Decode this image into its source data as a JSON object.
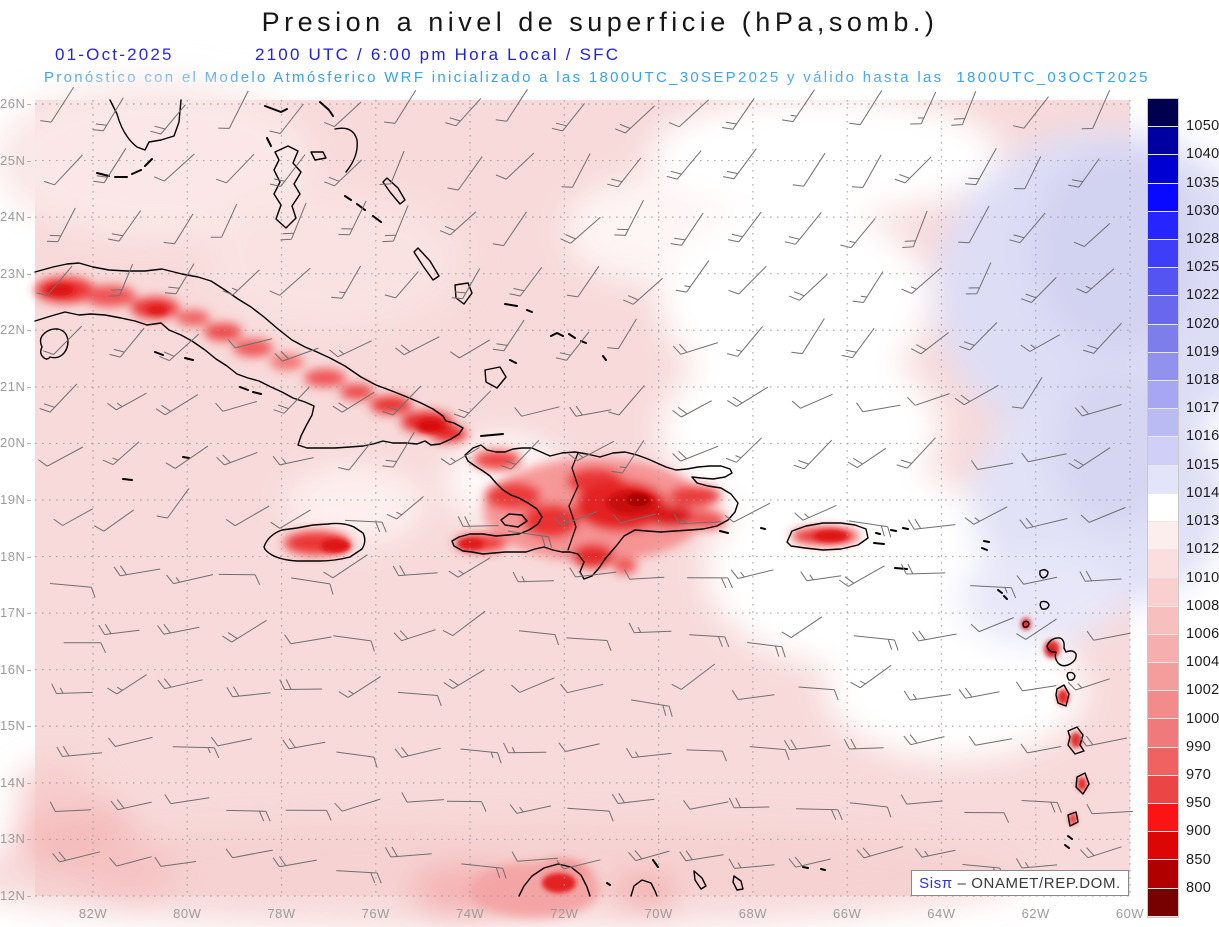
{
  "header": {
    "title": "Presion a nivel de superficie (hPa,somb.)",
    "date": "01-Oct-2025",
    "time_line": "2100 UTC / 6:00 pm Hora Local / SFC",
    "forecast_line": "Pronóstico con el Modelo Atmósferico WRF inicializado a las 1800UTC_30SEP2025 y válido hasta las  1800UTC_03OCT2025"
  },
  "colors": {
    "title_text": "#161616",
    "date_line_text": "#2222dd",
    "forecast_line_text": "#35a2f2",
    "axis_labels": "#9c9c9c",
    "coastline": "#000000",
    "wind_barbs": "#6f6f6f",
    "attribution_brand": "#2f2fe0",
    "attribution_text": "#3a3a3a",
    "sea_base_pink": "#f8dada"
  },
  "axes": {
    "lat": [
      "26N",
      "25N",
      "24N",
      "23N",
      "22N",
      "21N",
      "20N",
      "19N",
      "18N",
      "17N",
      "16N",
      "15N",
      "14N",
      "13N",
      "12N"
    ],
    "lon": [
      "82W",
      "80W",
      "78W",
      "76W",
      "74W",
      "72W",
      "70W",
      "68W",
      "66W",
      "64W",
      "62W",
      "60W"
    ]
  },
  "colorbar": {
    "unit": "hPa",
    "labels": [
      "1050",
      "1040",
      "1035",
      "1030",
      "1028",
      "1025",
      "1022",
      "1020",
      "1019",
      "1018",
      "1017",
      "1016",
      "1015",
      "1014",
      "1013",
      "1012",
      "1010",
      "1008",
      "1006",
      "1004",
      "1002",
      "1000",
      "990",
      "970",
      "950",
      "900",
      "850",
      "800"
    ],
    "colors": [
      "#00004e",
      "#0000a0",
      "#0000d2",
      "#0909ff",
      "#2525ff",
      "#3e3ef9",
      "#5454f2",
      "#6868ee",
      "#7d7dec",
      "#9191ee",
      "#a6a6f1",
      "#bbbbf4",
      "#cfcff7",
      "#e3e3fa",
      "#ffffff",
      "#fdeeee",
      "#fbdfdf",
      "#f9cfcf",
      "#f8bfbf",
      "#f6aeae",
      "#f49d9d",
      "#f28c8c",
      "#f07979",
      "#ee6262",
      "#ec4545",
      "#fc1414",
      "#dd0606",
      "#b00000",
      "#770000"
    ]
  },
  "wind_barbs": {
    "color": "#6f6f6f",
    "rows": 14,
    "cols": 19,
    "seed": 12,
    "pattern": "easterly / northeasterly trade-wind barbs"
  },
  "attribution": {
    "brand": "Sisπ",
    "suffix": " – ONAMET/REP.DOM."
  },
  "chart_data": {
    "type": "heatmap",
    "title": "Presion a nivel de superficie (hPa,somb.)",
    "valid_time": "01-Oct-2025 2100 UTC / 6:00 pm Hora Local / SFC",
    "model": "WRF",
    "model_init": "1800UTC_30SEP2025",
    "valid_until": "1800UTC_03OCT2025",
    "x_ticks": [
      "82W",
      "80W",
      "78W",
      "76W",
      "74W",
      "72W",
      "70W",
      "68W",
      "66W",
      "64W",
      "62W",
      "60W"
    ],
    "y_ticks": [
      "26N",
      "25N",
      "24N",
      "23N",
      "22N",
      "21N",
      "20N",
      "19N",
      "18N",
      "17N",
      "16N",
      "15N",
      "14N",
      "13N",
      "12N"
    ],
    "scale_levels_hPa": [
      800,
      850,
      900,
      950,
      970,
      990,
      1000,
      1002,
      1004,
      1006,
      1008,
      1010,
      1012,
      1013,
      1014,
      1015,
      1016,
      1017,
      1018,
      1019,
      1020,
      1022,
      1025,
      1028,
      1030,
      1035,
      1040,
      1050
    ],
    "legend_position": "right",
    "grid": "dotted, 1° latitude × 2° longitude",
    "features": [
      {
        "region": "Atlántico noreste (esquina superior derecha, azul claro)",
        "pressure_hPa": "1015-1016"
      },
      {
        "region": "banda diagonal central (blanca)",
        "pressure_hPa": "1013-1014"
      },
      {
        "region": "cuenca del Caribe y Bahamas (rosado)",
        "pressure_hPa": "1008-1012"
      },
      {
        "region": "interiores montañosos de Cuba, La Española, Jamaica, Puerto Rico, Antillas Menores y Guajira (rojo)",
        "pressure_hPa": "<=1002"
      }
    ]
  }
}
